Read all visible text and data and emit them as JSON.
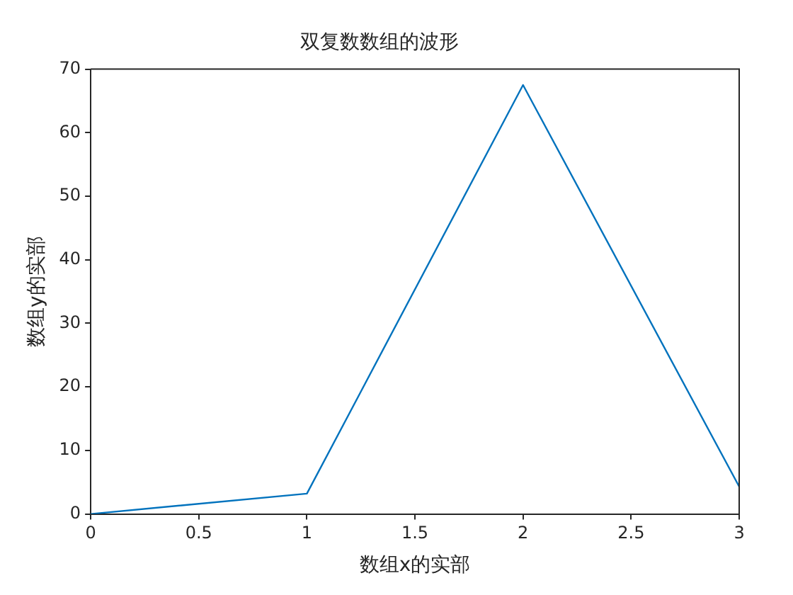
{
  "chart_data": {
    "type": "line",
    "title": "双复数数组的波形",
    "xlabel": "数组x的实部",
    "ylabel": "数组y的实部",
    "x": [
      0,
      1,
      2,
      3
    ],
    "series": [
      {
        "color": "#0072bd",
        "values": [
          0,
          3.2,
          67.5,
          4.3
        ]
      }
    ],
    "xlim": [
      0,
      3
    ],
    "xticks": [
      0,
      0.5,
      1,
      1.5,
      2,
      2.5,
      3
    ],
    "ylim": [
      0,
      70
    ],
    "yticks": [
      0,
      10,
      20,
      30,
      40,
      50,
      60,
      70
    ],
    "grid": false,
    "legend": false,
    "marker": "none",
    "line_style": "solid"
  }
}
